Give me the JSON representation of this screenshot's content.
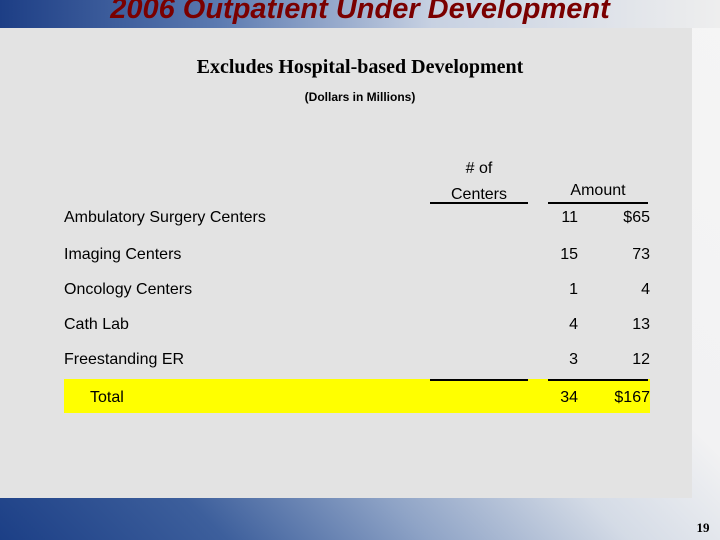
{
  "slide": {
    "title": "2006 Outpatient Under Development",
    "subtitle": "Excludes Hospital-based Development",
    "note": "(Dollars in Millions)",
    "page_number": "19"
  },
  "table": {
    "headers": {
      "centers_line1": "# of",
      "centers_line2": "Centers",
      "amount": "Amount"
    },
    "rows": [
      {
        "label": "Ambulatory Surgery Centers",
        "centers": "11",
        "amount": "$65"
      },
      {
        "label": "Imaging Centers",
        "centers": "15",
        "amount": "73"
      },
      {
        "label": "Oncology Centers",
        "centers": "1",
        "amount": "4"
      },
      {
        "label": "Cath Lab",
        "centers": "4",
        "amount": "13"
      },
      {
        "label": "Freestanding ER",
        "centers": "3",
        "amount": "12"
      }
    ],
    "total": {
      "label": "Total",
      "centers": "34",
      "amount": "$167"
    }
  },
  "colors": {
    "title": "#7a0000",
    "highlight": "#ffff00",
    "panel": "#e3e3e3"
  }
}
